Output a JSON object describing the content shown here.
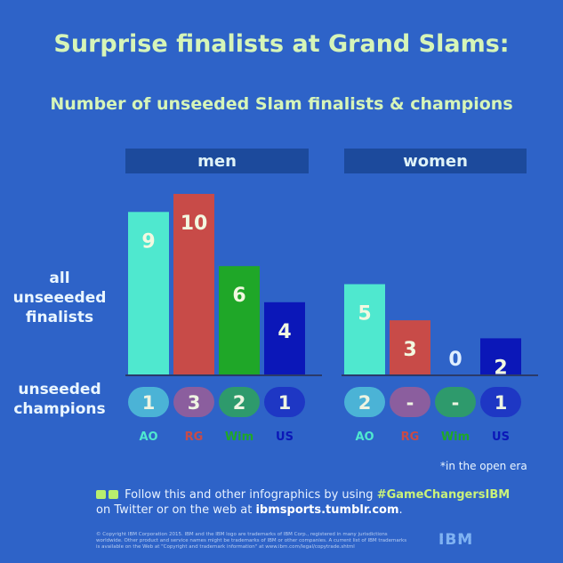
{
  "title": "Surprise finalists at Grand Slams:",
  "subtitle": "Number of unseeded Slam finalists & champions",
  "row_labels": {
    "finalists": "all unseeeded finalists",
    "champions": "unseeded champions"
  },
  "footnote": "*in the open era",
  "follow": {
    "prefix": "Follow this and other infographics by using ",
    "hashtag": "#GameChangersIBM",
    "middle": "on Twitter or on the web at ",
    "site": "ibmsports.tumblr.com",
    "suffix": "."
  },
  "copyright": "© Copyright IBM Corporation 2015. IBM and the IBM logo are trademarks of IBM Corp., registered in many jurisdictions worldwide. Other product and service names might be trademarks of IBM or other companies. A current list of IBM trademarks is available on the Web at \"Copyright and trademark information\" at www.ibm.com/legal/copytrade.shtml",
  "logo": "IBM",
  "chart_data": {
    "type": "bar",
    "categories": [
      "AO",
      "RG",
      "Wim",
      "US"
    ],
    "category_colors": [
      "#4fe8cf",
      "#c84b48",
      "#1fa728",
      "#0b17b8"
    ],
    "category_label_colors": [
      "#4fe8cf",
      "#c84b48",
      "#1fa728",
      "#0b17b8"
    ],
    "champion_pill_colors": [
      "#4bb3d6",
      "#8b5e9e",
      "#2e9a6c",
      "#1e37c4"
    ],
    "ylim": [
      0,
      10
    ],
    "panels": [
      {
        "name": "men",
        "finalists": [
          9,
          10,
          6,
          4
        ],
        "champions": [
          "1",
          "3",
          "2",
          "1"
        ]
      },
      {
        "name": "women",
        "finalists": [
          5,
          3,
          0,
          2
        ],
        "champions": [
          "2",
          "-",
          "-",
          "1"
        ]
      }
    ]
  }
}
